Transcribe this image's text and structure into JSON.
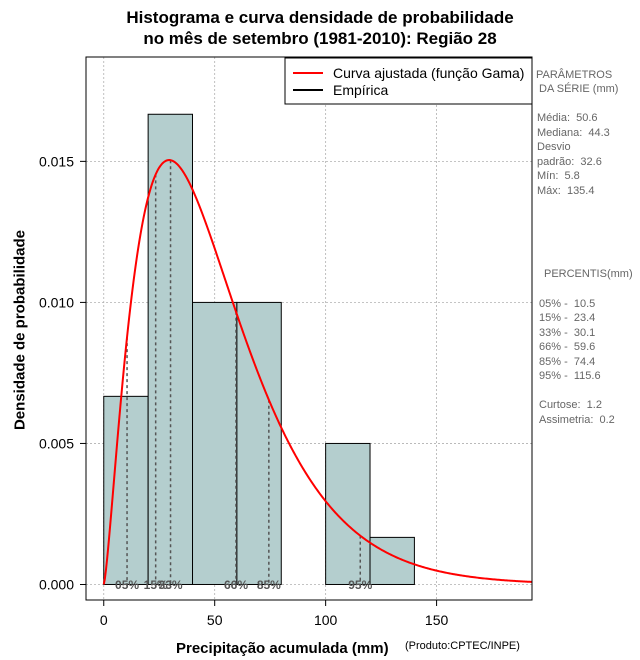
{
  "chart_data": {
    "type": "histogram",
    "title_line1": "Histograma e curva densidade de probabilidade",
    "title_line2": "no mês de setembro (1981-2010): Região 28",
    "xlabel": "Precipitação acumulada (mm)",
    "ylabel": "Densidade de probabilidade",
    "product": "(Produto:CPTEC/INPE)",
    "xlim": [
      -8,
      193
    ],
    "ylim": [
      -0.00055,
      0.0187
    ],
    "x_ticks": [
      0,
      50,
      100,
      150
    ],
    "x_tick_labels": [
      "0",
      "50",
      "100",
      "150"
    ],
    "y_ticks": [
      0.0,
      0.005,
      0.01,
      0.015
    ],
    "y_tick_labels": [
      "0.000",
      "0.005",
      "0.010",
      "0.015"
    ],
    "bins": [
      {
        "start": 0,
        "end": 20,
        "density": 0.00667
      },
      {
        "start": 20,
        "end": 40,
        "density": 0.01667
      },
      {
        "start": 40,
        "end": 60,
        "density": 0.01
      },
      {
        "start": 60,
        "end": 80,
        "density": 0.01
      },
      {
        "start": 80,
        "end": 100,
        "density": 0.0
      },
      {
        "start": 100,
        "end": 120,
        "density": 0.005
      },
      {
        "start": 120,
        "end": 140,
        "density": 0.00167
      }
    ],
    "gamma_fit": {
      "shape": 2.39,
      "scale": 21.2
    },
    "percentile_markers": [
      {
        "label": "05%",
        "value": 10.5
      },
      {
        "label": "15%",
        "value": 23.4
      },
      {
        "label": "33%",
        "value": 30.1
      },
      {
        "label": "66%",
        "value": 59.6
      },
      {
        "label": "85%",
        "value": 74.4
      },
      {
        "label": "95%",
        "value": 115.6
      }
    ],
    "legend": [
      {
        "label": "Curva ajustada (função Gama)",
        "color": "#ff0000"
      },
      {
        "label": "Empírica",
        "color": "#000000"
      }
    ],
    "colors": {
      "bar_fill": "#b4cece",
      "curve": "#ff0000",
      "grid": "#b0b0b0",
      "marker": "#555555"
    }
  },
  "stats": {
    "header1": "PARÂMETROS",
    "header2": "DA SÉRIE (mm)",
    "media": "Média:  50.6",
    "mediana": "Mediana:  44.3",
    "desvio1": "Desvio",
    "desvio2": "padrão:  32.6",
    "min": "Mín:  5.8",
    "max": "Máx:  135.4",
    "percentis_header": "PERCENTIS(mm)",
    "p05": "05% -  10.5",
    "p15": "15% -  23.4",
    "p33": "33% -  30.1",
    "p66": "66% -  59.6",
    "p85": "85% -  74.4",
    "p95": "95% -  115.6",
    "curtose": "Curtose:  1.2",
    "assimetria": "Assimetria:  0.2"
  }
}
